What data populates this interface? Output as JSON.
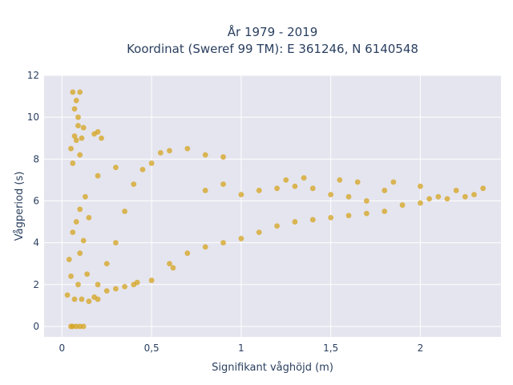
{
  "chart_data": {
    "type": "scatter",
    "title_lines": [
      "År 1979 - 2019",
      "Koordinat (Sweref 99 TM): E 361246, N 6140548"
    ],
    "xlabel": "Signifikant våghöjd (m)",
    "ylabel": "Vågperiod (s)",
    "xlim": [
      -0.1,
      2.45
    ],
    "ylim": [
      -0.5,
      12
    ],
    "xticks": [
      0,
      0.5,
      1,
      1.5,
      2
    ],
    "xtick_labels": [
      "0",
      "0,5",
      "1",
      "1,5",
      "2"
    ],
    "yticks": [
      0,
      2,
      4,
      6,
      8,
      10,
      12
    ],
    "ytick_labels": [
      "0",
      "2",
      "4",
      "6",
      "8",
      "10",
      "12"
    ],
    "grid": true,
    "marker_color": "#d4a31e",
    "background_color": "#e5e5ef",
    "points": [
      [
        0.03,
        1.5
      ],
      [
        0.04,
        3.2
      ],
      [
        0.05,
        2.4
      ],
      [
        0.06,
        4.5
      ],
      [
        0.07,
        1.3
      ],
      [
        0.08,
        5.0
      ],
      [
        0.09,
        2.0
      ],
      [
        0.1,
        3.5
      ],
      [
        0.1,
        5.6
      ],
      [
        0.11,
        1.3
      ],
      [
        0.12,
        4.1
      ],
      [
        0.13,
        6.2
      ],
      [
        0.14,
        2.5
      ],
      [
        0.15,
        5.2
      ],
      [
        0.05,
        8.5
      ],
      [
        0.06,
        7.8
      ],
      [
        0.07,
        9.1
      ],
      [
        0.08,
        8.9
      ],
      [
        0.09,
        9.6
      ],
      [
        0.1,
        8.2
      ],
      [
        0.11,
        9.0
      ],
      [
        0.07,
        10.4
      ],
      [
        0.08,
        10.8
      ],
      [
        0.06,
        11.2
      ],
      [
        0.1,
        11.2
      ],
      [
        0.09,
        10.0
      ],
      [
        0.12,
        9.5
      ],
      [
        0.18,
        9.2
      ],
      [
        0.2,
        9.3
      ],
      [
        0.22,
        9.0
      ],
      [
        0.05,
        0.0
      ],
      [
        0.06,
        0.0
      ],
      [
        0.08,
        0.0
      ],
      [
        0.1,
        0.0
      ],
      [
        0.12,
        0.0
      ],
      [
        0.2,
        2.0
      ],
      [
        0.25,
        3.0
      ],
      [
        0.3,
        4.0
      ],
      [
        0.35,
        5.5
      ],
      [
        0.4,
        6.8
      ],
      [
        0.45,
        7.5
      ],
      [
        0.2,
        7.2
      ],
      [
        0.3,
        7.6
      ],
      [
        0.5,
        7.8
      ],
      [
        0.55,
        8.3
      ],
      [
        0.6,
        8.4
      ],
      [
        0.7,
        8.5
      ],
      [
        0.8,
        8.2
      ],
      [
        0.9,
        8.1
      ],
      [
        0.5,
        2.2
      ],
      [
        0.6,
        3.0
      ],
      [
        0.7,
        3.5
      ],
      [
        0.8,
        3.8
      ],
      [
        0.9,
        4.0
      ],
      [
        1.0,
        4.2
      ],
      [
        1.1,
        4.5
      ],
      [
        0.8,
        6.5
      ],
      [
        0.9,
        6.8
      ],
      [
        1.0,
        6.3
      ],
      [
        1.1,
        6.5
      ],
      [
        1.2,
        6.6
      ],
      [
        1.3,
        6.7
      ],
      [
        1.4,
        6.6
      ],
      [
        1.2,
        4.8
      ],
      [
        1.3,
        5.0
      ],
      [
        1.4,
        5.1
      ],
      [
        1.5,
        5.2
      ],
      [
        1.6,
        5.3
      ],
      [
        1.7,
        5.4
      ],
      [
        1.8,
        5.5
      ],
      [
        1.5,
        6.3
      ],
      [
        1.6,
        6.2
      ],
      [
        1.7,
        6.0
      ],
      [
        1.8,
        6.5
      ],
      [
        1.9,
        5.8
      ],
      [
        2.0,
        5.9
      ],
      [
        2.05,
        6.1
      ],
      [
        2.1,
        6.2
      ],
      [
        2.15,
        6.1
      ],
      [
        2.2,
        6.5
      ],
      [
        2.25,
        6.2
      ],
      [
        2.3,
        6.3
      ],
      [
        2.35,
        6.6
      ],
      [
        2.0,
        6.7
      ],
      [
        1.25,
        7.0
      ],
      [
        1.35,
        7.1
      ],
      [
        1.55,
        7.0
      ],
      [
        1.65,
        6.9
      ],
      [
        1.85,
        6.9
      ],
      [
        0.25,
        1.7
      ],
      [
        0.3,
        1.8
      ],
      [
        0.35,
        1.9
      ],
      [
        0.4,
        2.0
      ],
      [
        0.42,
        2.1
      ],
      [
        0.62,
        2.8
      ],
      [
        0.2,
        1.3
      ],
      [
        0.18,
        1.4
      ],
      [
        0.15,
        1.2
      ]
    ]
  }
}
